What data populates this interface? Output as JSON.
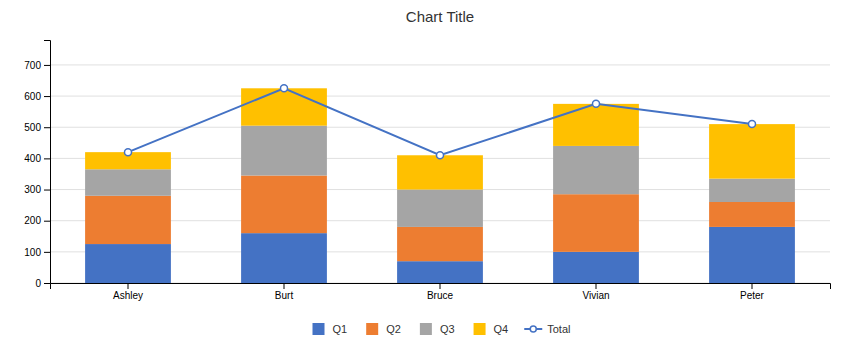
{
  "chart_data": {
    "type": "bar",
    "title": "Chart Title",
    "stacked": true,
    "grid": true,
    "legend": "bottom",
    "categories": [
      "Ashley",
      "Burt",
      "Bruce",
      "Vivian",
      "Peter"
    ],
    "series": [
      {
        "name": "Q1",
        "type": "bar",
        "color": "#4472C4",
        "values": [
          125,
          160,
          70,
          100,
          180
        ]
      },
      {
        "name": "Q2",
        "type": "bar",
        "color": "#ED7D31",
        "values": [
          155,
          185,
          110,
          185,
          80
        ]
      },
      {
        "name": "Q3",
        "type": "bar",
        "color": "#A5A5A5",
        "values": [
          85,
          160,
          120,
          155,
          75
        ]
      },
      {
        "name": "Q4",
        "type": "bar",
        "color": "#FFC000",
        "values": [
          55,
          120,
          110,
          135,
          175
        ]
      },
      {
        "name": "Total",
        "type": "line",
        "color": "#4472C4",
        "marker": "circle",
        "values": [
          420,
          625,
          410,
          575,
          510
        ]
      }
    ],
    "ylim": [
      0,
      780
    ],
    "yticks": [
      0,
      100,
      200,
      300,
      400,
      500,
      600,
      700
    ]
  }
}
